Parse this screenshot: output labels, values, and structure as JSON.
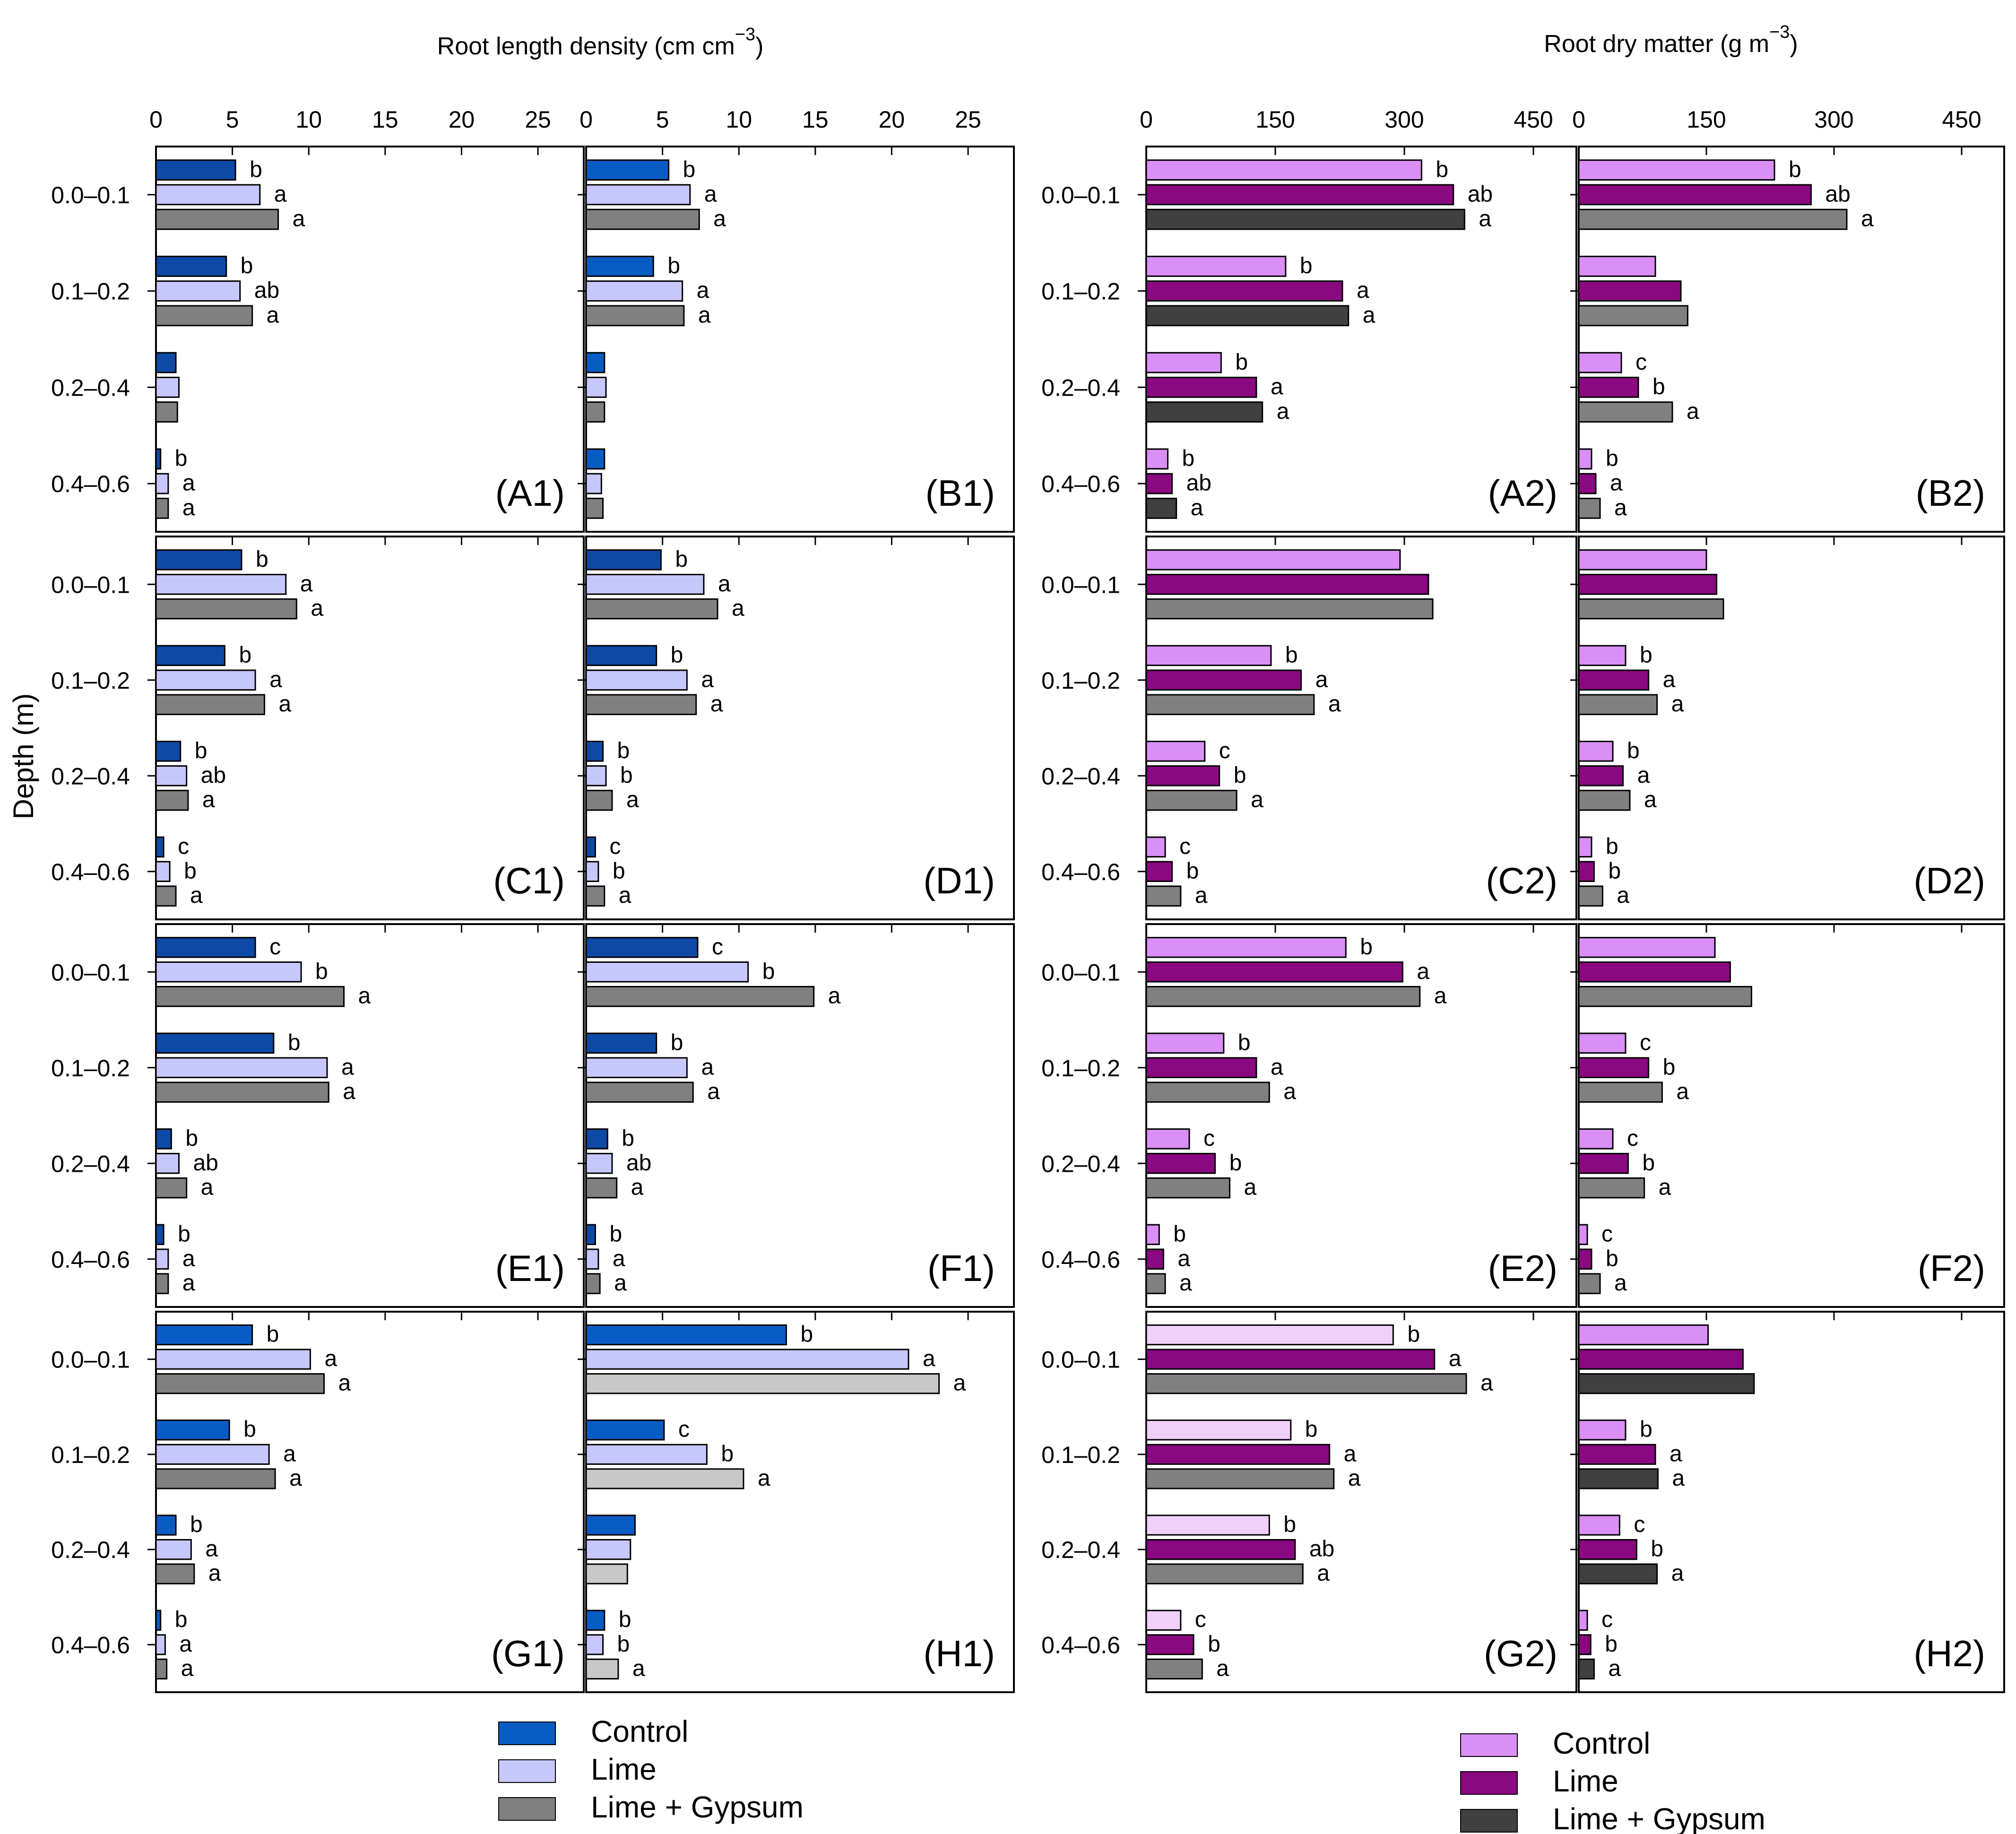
{
  "rld_title": "Root length density (cm cm",
  "rld_sup": "−3",
  "rld_close": ")",
  "rdm_title": "Root dry matter (g m",
  "rdm_sup": "−3",
  "rdm_close": ")",
  "ylabel": "Depth (m)",
  "depth_labels": [
    "0.0–0.1",
    "0.1–0.2",
    "0.2–0.4",
    "0.4–0.6"
  ],
  "legend_left": [
    {
      "label": "Control",
      "color": "#0a5cc5"
    },
    {
      "label": "Lime",
      "color": "#c6c7fb"
    },
    {
      "label": "Lime + Gypsum",
      "color": "#808080"
    }
  ],
  "legend_right": [
    {
      "label": "Control",
      "color": "#d98ff5"
    },
    {
      "label": "Lime",
      "color": "#8a0880"
    },
    {
      "label": "Lime + Gypsum",
      "color": "#404040"
    }
  ],
  "chart_data": [
    {
      "panel": "A1",
      "type": "bar",
      "xlim": [
        0,
        28
      ],
      "xticks": [
        0,
        5,
        10,
        15,
        20,
        25
      ],
      "categories": [
        "0.0–0.1",
        "0.1–0.2",
        "0.2–0.4",
        "0.4–0.6"
      ],
      "colors": [
        "#0d4aa6",
        "#c6c7fb",
        "#808080"
      ],
      "series": [
        {
          "name": "Control",
          "values": [
            5.2,
            4.6,
            1.3,
            0.3
          ],
          "letters": [
            "b",
            "b",
            "",
            "b"
          ]
        },
        {
          "name": "Lime",
          "values": [
            6.8,
            5.5,
            1.5,
            0.8
          ],
          "letters": [
            "a",
            "ab",
            "",
            "a"
          ]
        },
        {
          "name": "Lime + Gypsum",
          "values": [
            8.0,
            6.3,
            1.4,
            0.8
          ],
          "letters": [
            "a",
            "a",
            "",
            "a"
          ]
        }
      ]
    },
    {
      "panel": "B1",
      "type": "bar",
      "xlim": [
        0,
        28
      ],
      "xticks": [
        0,
        5,
        10,
        15,
        20,
        25
      ],
      "categories": [
        "0.0–0.1",
        "0.1–0.2",
        "0.2–0.4",
        "0.4–0.6"
      ],
      "colors": [
        "#0a5cc5",
        "#c6c7fb",
        "#808080"
      ],
      "series": [
        {
          "name": "Control",
          "values": [
            5.4,
            4.4,
            1.2,
            1.2
          ],
          "letters": [
            "b",
            "b",
            "",
            ""
          ]
        },
        {
          "name": "Lime",
          "values": [
            6.8,
            6.3,
            1.3,
            1.0
          ],
          "letters": [
            "a",
            "a",
            "",
            ""
          ]
        },
        {
          "name": "Lime + Gypsum",
          "values": [
            7.4,
            6.4,
            1.2,
            1.1
          ],
          "letters": [
            "a",
            "a",
            "",
            ""
          ]
        }
      ]
    },
    {
      "panel": "C1",
      "type": "bar",
      "xlim": [
        0,
        28
      ],
      "xticks": [
        0,
        5,
        10,
        15,
        20,
        25
      ],
      "categories": [
        "0.0–0.1",
        "0.1–0.2",
        "0.2–0.4",
        "0.4–0.6"
      ],
      "colors": [
        "#0d4aa6",
        "#c6c7fb",
        "#808080"
      ],
      "series": [
        {
          "name": "Control",
          "values": [
            5.6,
            4.5,
            1.6,
            0.5
          ],
          "letters": [
            "b",
            "b",
            "b",
            "c"
          ]
        },
        {
          "name": "Lime",
          "values": [
            8.5,
            6.5,
            2.0,
            0.9
          ],
          "letters": [
            "a",
            "a",
            "ab",
            "b"
          ]
        },
        {
          "name": "Lime + Gypsum",
          "values": [
            9.2,
            7.1,
            2.1,
            1.3
          ],
          "letters": [
            "a",
            "a",
            "a",
            "a"
          ]
        }
      ]
    },
    {
      "panel": "D1",
      "type": "bar",
      "xlim": [
        0,
        28
      ],
      "xticks": [
        0,
        5,
        10,
        15,
        20,
        25
      ],
      "categories": [
        "0.0–0.1",
        "0.1–0.2",
        "0.2–0.4",
        "0.4–0.6"
      ],
      "colors": [
        "#0d4aa6",
        "#c6c7fb",
        "#808080"
      ],
      "series": [
        {
          "name": "Control",
          "values": [
            4.9,
            4.6,
            1.1,
            0.6
          ],
          "letters": [
            "b",
            "b",
            "b",
            "c"
          ]
        },
        {
          "name": "Lime",
          "values": [
            7.7,
            6.6,
            1.3,
            0.8
          ],
          "letters": [
            "a",
            "a",
            "b",
            "b"
          ]
        },
        {
          "name": "Lime + Gypsum",
          "values": [
            8.6,
            7.2,
            1.7,
            1.2
          ],
          "letters": [
            "a",
            "a",
            "a",
            "a"
          ]
        }
      ]
    },
    {
      "panel": "E1",
      "type": "bar",
      "xlim": [
        0,
        28
      ],
      "xticks": [
        0,
        5,
        10,
        15,
        20,
        25
      ],
      "categories": [
        "0.0–0.1",
        "0.1–0.2",
        "0.2–0.4",
        "0.4–0.6"
      ],
      "colors": [
        "#0d4aa6",
        "#c6c7fb",
        "#808080"
      ],
      "series": [
        {
          "name": "Control",
          "values": [
            6.5,
            7.7,
            1.0,
            0.5
          ],
          "letters": [
            "c",
            "b",
            "b",
            "b"
          ]
        },
        {
          "name": "Lime",
          "values": [
            9.5,
            11.2,
            1.5,
            0.8
          ],
          "letters": [
            "b",
            "a",
            "ab",
            "a"
          ]
        },
        {
          "name": "Lime + Gypsum",
          "values": [
            12.3,
            11.3,
            2.0,
            0.8
          ],
          "letters": [
            "a",
            "a",
            "a",
            "a"
          ]
        }
      ]
    },
    {
      "panel": "F1",
      "type": "bar",
      "xlim": [
        0,
        28
      ],
      "xticks": [
        0,
        5,
        10,
        15,
        20,
        25
      ],
      "categories": [
        "0.0–0.1",
        "0.1–0.2",
        "0.2–0.4",
        "0.4–0.6"
      ],
      "colors": [
        "#0d4aa6",
        "#c6c7fb",
        "#808080"
      ],
      "series": [
        {
          "name": "Control",
          "values": [
            7.3,
            4.6,
            1.4,
            0.6
          ],
          "letters": [
            "c",
            "b",
            "b",
            "b"
          ]
        },
        {
          "name": "Lime",
          "values": [
            10.6,
            6.6,
            1.7,
            0.8
          ],
          "letters": [
            "b",
            "a",
            "ab",
            "a"
          ]
        },
        {
          "name": "Lime + Gypsum",
          "values": [
            14.9,
            7.0,
            2.0,
            0.9
          ],
          "letters": [
            "a",
            "a",
            "a",
            "a"
          ]
        }
      ]
    },
    {
      "panel": "G1",
      "type": "bar",
      "xlim": [
        0,
        28
      ],
      "xticks": [
        0,
        5,
        10,
        15,
        20,
        25
      ],
      "categories": [
        "0.0–0.1",
        "0.1–0.2",
        "0.2–0.4",
        "0.4–0.6"
      ],
      "colors": [
        "#0a5cc5",
        "#c6c7fb",
        "#808080"
      ],
      "series": [
        {
          "name": "Control",
          "values": [
            6.3,
            4.8,
            1.3,
            0.3
          ],
          "letters": [
            "b",
            "b",
            "b",
            "b"
          ]
        },
        {
          "name": "Lime",
          "values": [
            10.1,
            7.4,
            2.3,
            0.6
          ],
          "letters": [
            "a",
            "a",
            "a",
            "a"
          ]
        },
        {
          "name": "Lime + Gypsum",
          "values": [
            11.0,
            7.8,
            2.5,
            0.7
          ],
          "letters": [
            "a",
            "a",
            "a",
            "a"
          ]
        }
      ]
    },
    {
      "panel": "H1",
      "type": "bar",
      "xlim": [
        0,
        28
      ],
      "xticks": [
        0,
        5,
        10,
        15,
        20,
        25
      ],
      "categories": [
        "0.0–0.1",
        "0.1–0.2",
        "0.2–0.4",
        "0.4–0.6"
      ],
      "colors": [
        "#0a5cc5",
        "#c6c7fb",
        "#c8c8c8"
      ],
      "series": [
        {
          "name": "Control",
          "values": [
            13.1,
            5.1,
            3.2,
            1.2
          ],
          "letters": [
            "b",
            "c",
            "",
            "b"
          ]
        },
        {
          "name": "Lime",
          "values": [
            21.1,
            7.9,
            2.9,
            1.1
          ],
          "letters": [
            "a",
            "b",
            "",
            "b"
          ]
        },
        {
          "name": "Lime + Gypsum",
          "values": [
            23.1,
            10.3,
            2.7,
            2.1
          ],
          "letters": [
            "a",
            "a",
            "",
            "a"
          ]
        }
      ]
    },
    {
      "panel": "A2",
      "type": "bar",
      "xlim": [
        0,
        500
      ],
      "xticks": [
        0,
        150,
        300,
        450
      ],
      "categories": [
        "0.0–0.1",
        "0.1–0.2",
        "0.2–0.4",
        "0.4–0.6"
      ],
      "colors": [
        "#d98ff5",
        "#8a0880",
        "#404040"
      ],
      "series": [
        {
          "name": "Control",
          "values": [
            320,
            162,
            87,
            25
          ],
          "letters": [
            "b",
            "b",
            "b",
            "b"
          ]
        },
        {
          "name": "Lime",
          "values": [
            357,
            228,
            128,
            30
          ],
          "letters": [
            "ab",
            "a",
            "a",
            "ab"
          ]
        },
        {
          "name": "Lime + Gypsum",
          "values": [
            370,
            235,
            135,
            35
          ],
          "letters": [
            "a",
            "a",
            "a",
            "a"
          ]
        }
      ]
    },
    {
      "panel": "B2",
      "type": "bar",
      "xlim": [
        0,
        500
      ],
      "xticks": [
        0,
        150,
        300,
        450
      ],
      "categories": [
        "0.0–0.1",
        "0.1–0.2",
        "0.2–0.4",
        "0.4–0.6"
      ],
      "colors": [
        "#d98ff5",
        "#8a0880",
        "#808080"
      ],
      "series": [
        {
          "name": "Control",
          "values": [
            230,
            90,
            50,
            15
          ],
          "letters": [
            "b",
            "",
            "c",
            "b"
          ]
        },
        {
          "name": "Lime",
          "values": [
            273,
            120,
            70,
            20
          ],
          "letters": [
            "ab",
            "",
            "b",
            "a"
          ]
        },
        {
          "name": "Lime + Gypsum",
          "values": [
            315,
            128,
            110,
            25
          ],
          "letters": [
            "a",
            "",
            "a",
            "a"
          ]
        }
      ]
    },
    {
      "panel": "C2",
      "type": "bar",
      "xlim": [
        0,
        500
      ],
      "xticks": [
        0,
        150,
        300,
        450
      ],
      "categories": [
        "0.0–0.1",
        "0.1–0.2",
        "0.2–0.4",
        "0.4–0.6"
      ],
      "colors": [
        "#d98ff5",
        "#8a0880",
        "#808080"
      ],
      "series": [
        {
          "name": "Control",
          "values": [
            295,
            145,
            68,
            22
          ],
          "letters": [
            "",
            "b",
            "c",
            "c"
          ]
        },
        {
          "name": "Lime",
          "values": [
            328,
            180,
            85,
            30
          ],
          "letters": [
            "",
            "a",
            "b",
            "b"
          ]
        },
        {
          "name": "Lime + Gypsum",
          "values": [
            333,
            195,
            105,
            40
          ],
          "letters": [
            "",
            "a",
            "a",
            "a"
          ]
        }
      ]
    },
    {
      "panel": "D2",
      "type": "bar",
      "xlim": [
        0,
        500
      ],
      "xticks": [
        0,
        150,
        300,
        450
      ],
      "categories": [
        "0.0–0.1",
        "0.1–0.2",
        "0.2–0.4",
        "0.4–0.6"
      ],
      "colors": [
        "#d98ff5",
        "#8a0880",
        "#808080"
      ],
      "series": [
        {
          "name": "Control",
          "values": [
            150,
            55,
            40,
            15
          ],
          "letters": [
            "",
            "b",
            "b",
            "b"
          ]
        },
        {
          "name": "Lime",
          "values": [
            162,
            82,
            52,
            18
          ],
          "letters": [
            "",
            "a",
            "a",
            "b"
          ]
        },
        {
          "name": "Lime + Gypsum",
          "values": [
            170,
            92,
            60,
            28
          ],
          "letters": [
            "",
            "a",
            "a",
            "a"
          ]
        }
      ]
    },
    {
      "panel": "E2",
      "type": "bar",
      "xlim": [
        0,
        500
      ],
      "xticks": [
        0,
        150,
        300,
        450
      ],
      "categories": [
        "0.0–0.1",
        "0.1–0.2",
        "0.2–0.4",
        "0.4–0.6"
      ],
      "colors": [
        "#d98ff5",
        "#8a0880",
        "#808080"
      ],
      "series": [
        {
          "name": "Control",
          "values": [
            232,
            90,
            50,
            15
          ],
          "letters": [
            "b",
            "b",
            "c",
            "b"
          ]
        },
        {
          "name": "Lime",
          "values": [
            298,
            128,
            80,
            20
          ],
          "letters": [
            "a",
            "a",
            "b",
            "a"
          ]
        },
        {
          "name": "Lime + Gypsum",
          "values": [
            318,
            143,
            97,
            22
          ],
          "letters": [
            "a",
            "a",
            "a",
            "a"
          ]
        }
      ]
    },
    {
      "panel": "F2",
      "type": "bar",
      "xlim": [
        0,
        500
      ],
      "xticks": [
        0,
        150,
        300,
        450
      ],
      "categories": [
        "0.0–0.1",
        "0.1–0.2",
        "0.2–0.4",
        "0.4–0.6"
      ],
      "colors": [
        "#d98ff5",
        "#8a0880",
        "#808080"
      ],
      "series": [
        {
          "name": "Control",
          "values": [
            160,
            55,
            40,
            10
          ],
          "letters": [
            "",
            "c",
            "c",
            "c"
          ]
        },
        {
          "name": "Lime",
          "values": [
            178,
            82,
            58,
            15
          ],
          "letters": [
            "",
            "b",
            "b",
            "b"
          ]
        },
        {
          "name": "Lime + Gypsum",
          "values": [
            203,
            98,
            77,
            25
          ],
          "letters": [
            "",
            "a",
            "a",
            "a"
          ]
        }
      ]
    },
    {
      "panel": "G2",
      "type": "bar",
      "xlim": [
        0,
        500
      ],
      "xticks": [
        0,
        150,
        300,
        450
      ],
      "categories": [
        "0.0–0.1",
        "0.1–0.2",
        "0.2–0.4",
        "0.4–0.6"
      ],
      "colors": [
        "#f0d0f8",
        "#8a0880",
        "#808080"
      ],
      "series": [
        {
          "name": "Control",
          "values": [
            287,
            168,
            143,
            40
          ],
          "letters": [
            "b",
            "b",
            "b",
            "c"
          ]
        },
        {
          "name": "Lime",
          "values": [
            335,
            213,
            173,
            55
          ],
          "letters": [
            "a",
            "a",
            "ab",
            "b"
          ]
        },
        {
          "name": "Lime + Gypsum",
          "values": [
            372,
            218,
            182,
            65
          ],
          "letters": [
            "a",
            "a",
            "a",
            "a"
          ]
        }
      ]
    },
    {
      "panel": "H2",
      "type": "bar",
      "xlim": [
        0,
        500
      ],
      "xticks": [
        0,
        150,
        300,
        450
      ],
      "categories": [
        "0.0–0.1",
        "0.1–0.2",
        "0.2–0.4",
        "0.4–0.6"
      ],
      "colors": [
        "#d98ff5",
        "#8a0880",
        "#404040"
      ],
      "series": [
        {
          "name": "Control",
          "values": [
            152,
            55,
            48,
            10
          ],
          "letters": [
            "",
            "b",
            "c",
            "c"
          ]
        },
        {
          "name": "Lime",
          "values": [
            193,
            90,
            68,
            14
          ],
          "letters": [
            "",
            "a",
            "b",
            "b"
          ]
        },
        {
          "name": "Lime + Gypsum",
          "values": [
            206,
            93,
            92,
            18
          ],
          "letters": [
            "",
            "a",
            "a",
            "a"
          ]
        }
      ]
    }
  ]
}
